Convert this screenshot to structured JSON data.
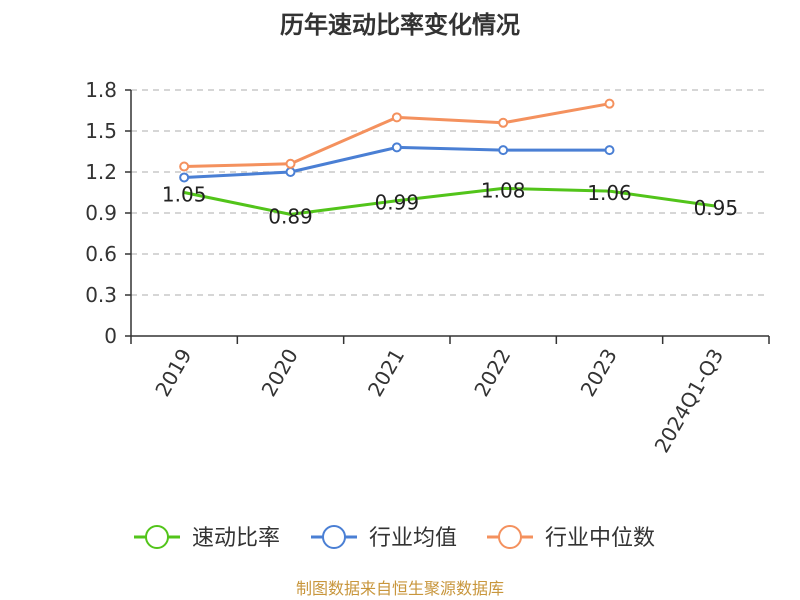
{
  "chart_data": {
    "type": "line",
    "title": "历年速动比率变化情况",
    "categories": [
      "2019",
      "2020",
      "2021",
      "2022",
      "2023",
      "2024Q1-Q3"
    ],
    "ylim": [
      0,
      1.8
    ],
    "yticks": [
      "0",
      "0.3",
      "0.6",
      "0.9",
      "1.2",
      "1.5",
      "1.8"
    ],
    "ytick_values": [
      0,
      0.3,
      0.6,
      0.9,
      1.2,
      1.5,
      1.8
    ],
    "grid": true,
    "legend_position": "bottom",
    "series": [
      {
        "name": "速动比率",
        "color": "#52c41a",
        "values": [
          1.05,
          0.89,
          0.99,
          1.08,
          1.06,
          0.95
        ],
        "labels": [
          "1.05",
          "0.89",
          "0.99",
          "1.08",
          "1.06",
          "0.95"
        ]
      },
      {
        "name": "行业均值",
        "color": "#4a7fd4",
        "values": [
          1.16,
          1.2,
          1.38,
          1.36,
          1.36,
          null
        ]
      },
      {
        "name": "行业中位数",
        "color": "#f4915e",
        "values": [
          1.24,
          1.26,
          1.6,
          1.56,
          1.7,
          null
        ]
      }
    ],
    "source": "制图数据来自恒生聚源数据库"
  }
}
